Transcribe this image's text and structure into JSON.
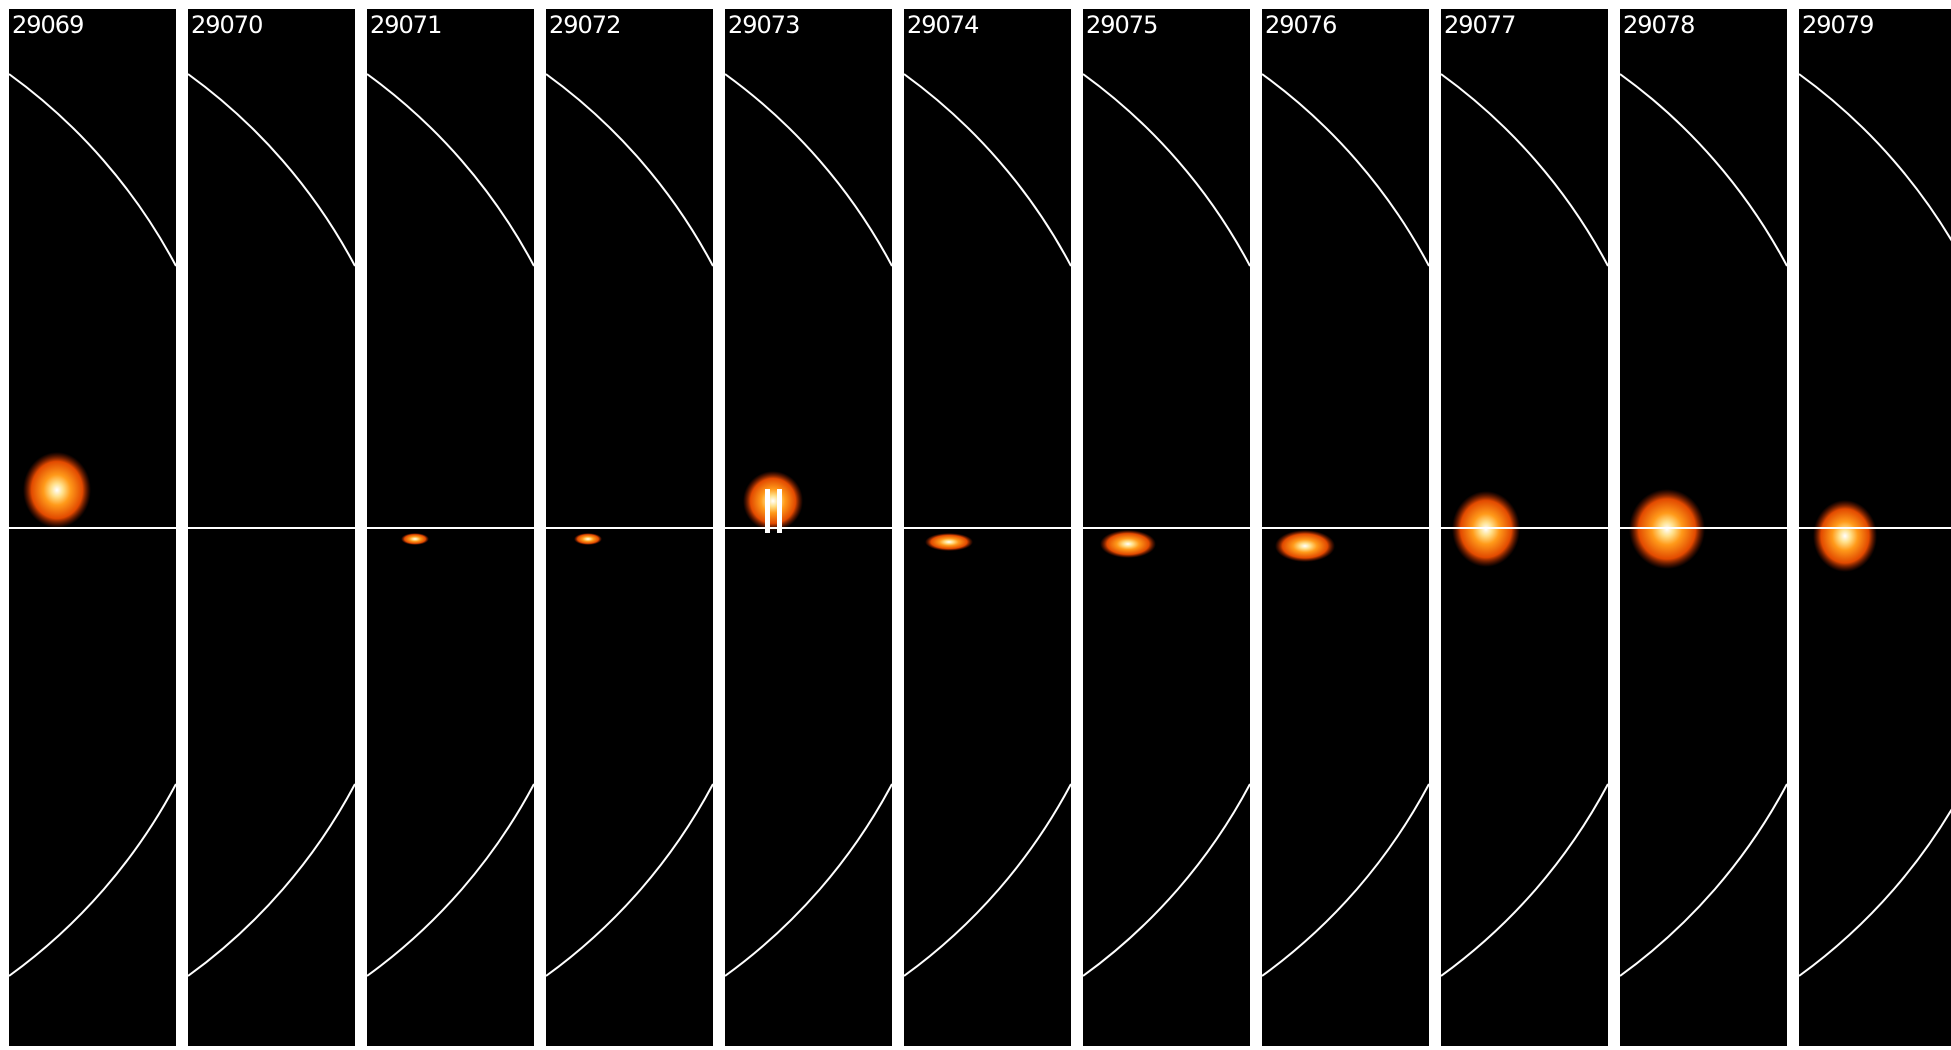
{
  "panels": [
    {
      "label": "29069"
    },
    {
      "label": "29070"
    },
    {
      "label": "29071"
    },
    {
      "label": "29072"
    },
    {
      "label": "29073"
    },
    {
      "label": "29074"
    },
    {
      "label": "29075"
    },
    {
      "label": "29076"
    },
    {
      "label": "29077"
    },
    {
      "label": "29078"
    },
    {
      "label": "29079"
    }
  ]
}
